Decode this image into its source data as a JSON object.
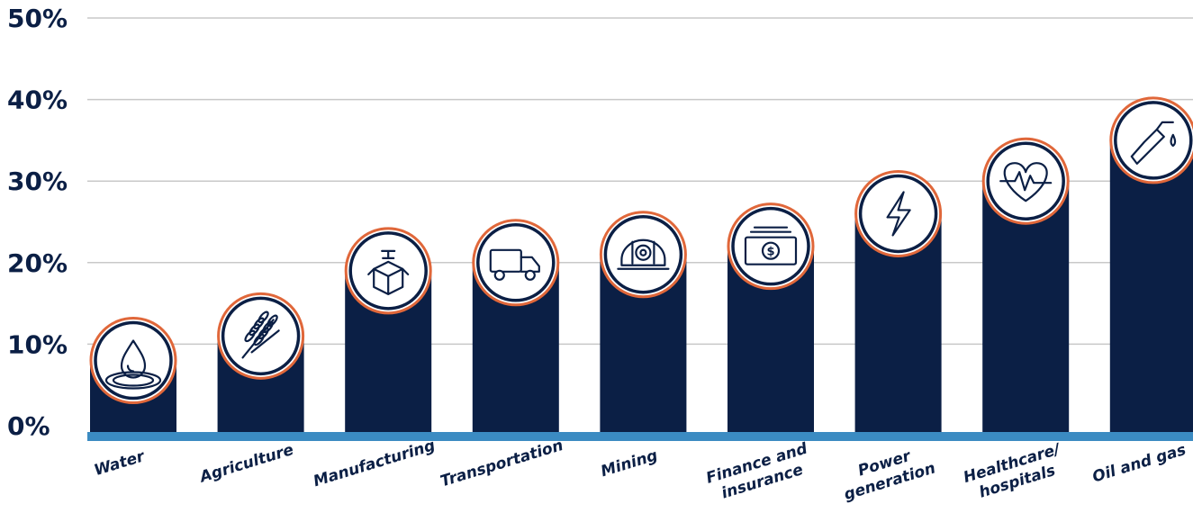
{
  "chart_data": {
    "type": "bar",
    "categories": [
      "Water",
      "Agriculture",
      "Manufacturing",
      "Transportation",
      "Mining",
      "Finance and insurance",
      "Power generation",
      "Healthcare/ hospitals",
      "Oil and gas"
    ],
    "category_label_lines": [
      [
        "Water"
      ],
      [
        "Agriculture"
      ],
      [
        "Manufacturing"
      ],
      [
        "Transportation"
      ],
      [
        "Mining"
      ],
      [
        "Finance and",
        "insurance"
      ],
      [
        "Power",
        "generation"
      ],
      [
        "Healthcare/",
        "hospitals"
      ],
      [
        "Oil and gas"
      ]
    ],
    "values": [
      8,
      11,
      19,
      20,
      21,
      22,
      26,
      30,
      35
    ],
    "icons": [
      "water-drop-icon",
      "wheat-icon",
      "box-package-icon",
      "delivery-truck-icon",
      "mining-helmet-icon",
      "banknote-icon",
      "lightning-bolt-icon",
      "heartbeat-icon",
      "fuel-nozzle-icon"
    ],
    "yticks": [
      "0%",
      "10%",
      "20%",
      "30%",
      "40%",
      "50%"
    ],
    "ylim": [
      0,
      50
    ],
    "grid": true,
    "title": "",
    "xlabel": "",
    "ylabel": "",
    "colors": {
      "bar": "#0b1f45",
      "baseline": "#3b8bc2",
      "ring": "#e0673a",
      "grid": "#c8c8c8",
      "text": "#0b1f45"
    }
  }
}
